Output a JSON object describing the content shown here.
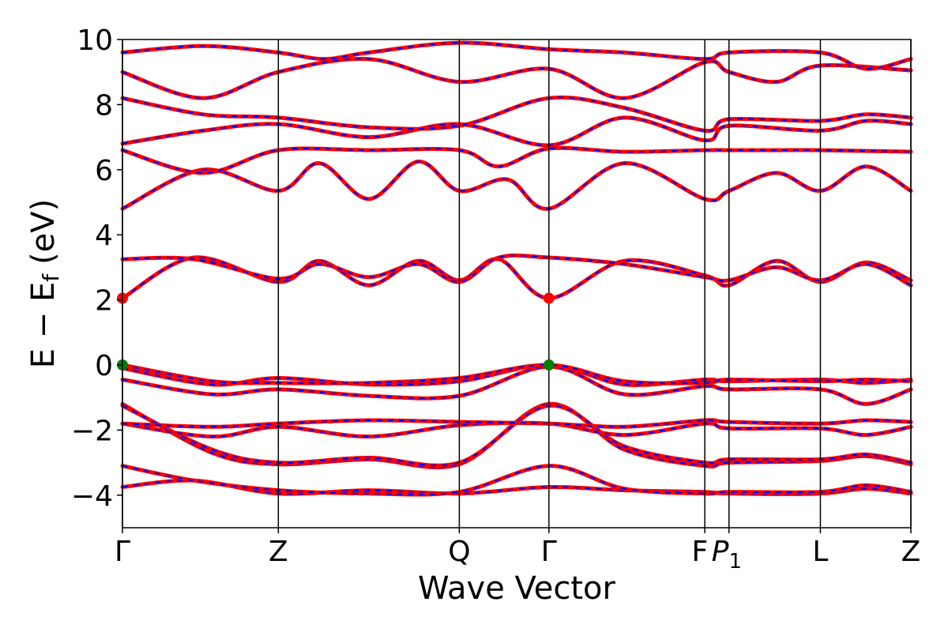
{
  "chart_data": {
    "type": "line",
    "xlabel": "Wave Vector",
    "ylabel": "E − E",
    "ylabel_sub": "f",
    "ylabel_unit": "(eV)",
    "ylim": [
      -5,
      10
    ],
    "y_ticks": [
      -4,
      -2,
      0,
      2,
      4,
      6,
      8,
      10
    ],
    "y_tick_labels": [
      "−4",
      "−2",
      "0",
      "2",
      "4",
      "6",
      "8",
      "10"
    ],
    "xlim": [
      0,
      8.8
    ],
    "k_points": [
      {
        "label": "Γ",
        "sub": "",
        "x": 0.0
      },
      {
        "label": "Z",
        "sub": "",
        "x": 1.74
      },
      {
        "label": "Q",
        "sub": "",
        "x": 3.76
      },
      {
        "label": "Γ",
        "sub": "",
        "x": 4.76
      },
      {
        "label": "F",
        "sub": "",
        "x": 6.5
      },
      {
        "label": "P",
        "sub": "1",
        "x": 6.77
      },
      {
        "label": "L",
        "sub": "",
        "x": 7.79
      },
      {
        "label": "Z",
        "sub": "",
        "x": 8.8
      }
    ],
    "grid": false,
    "series": [
      {
        "color": "#ff0000",
        "style": "solid"
      },
      {
        "color": "#0000ff",
        "style": "dashed"
      }
    ],
    "bands": [
      [
        [
          0,
          -3.75
        ],
        [
          0.8,
          -3.55
        ],
        [
          1.74,
          -3.95
        ],
        [
          2.75,
          -3.85
        ],
        [
          3.76,
          -3.95
        ],
        [
          4.76,
          -3.75
        ],
        [
          5.6,
          -3.85
        ],
        [
          6.5,
          -3.9
        ],
        [
          6.77,
          -3.95
        ],
        [
          7.79,
          -3.95
        ],
        [
          8.3,
          -3.8
        ],
        [
          8.8,
          -3.95
        ]
      ],
      [
        [
          0,
          -3.1
        ],
        [
          0.8,
          -3.55
        ],
        [
          1.74,
          -3.85
        ],
        [
          2.75,
          -3.95
        ],
        [
          3.76,
          -3.9
        ],
        [
          4.76,
          -3.1
        ],
        [
          5.6,
          -3.8
        ],
        [
          6.5,
          -3.95
        ],
        [
          6.77,
          -3.9
        ],
        [
          7.79,
          -3.9
        ],
        [
          8.3,
          -3.7
        ],
        [
          8.8,
          -3.9
        ]
      ],
      [
        [
          0,
          -1.2
        ],
        [
          1.0,
          -2.7
        ],
        [
          1.74,
          -3.05
        ],
        [
          2.75,
          -2.9
        ],
        [
          3.76,
          -3.05
        ],
        [
          4.76,
          -1.2
        ],
        [
          5.6,
          -2.6
        ],
        [
          6.5,
          -3.1
        ],
        [
          6.77,
          -3.0
        ],
        [
          7.79,
          -2.95
        ],
        [
          8.3,
          -2.8
        ],
        [
          8.8,
          -3.05
        ]
      ],
      [
        [
          0,
          -1.25
        ],
        [
          1.0,
          -2.6
        ],
        [
          1.74,
          -3.0
        ],
        [
          2.75,
          -2.85
        ],
        [
          3.76,
          -3.0
        ],
        [
          4.76,
          -1.25
        ],
        [
          5.6,
          -2.5
        ],
        [
          6.5,
          -3.0
        ],
        [
          6.77,
          -2.9
        ],
        [
          7.79,
          -2.9
        ],
        [
          8.3,
          -2.75
        ],
        [
          8.8,
          -3.0
        ]
      ],
      [
        [
          0,
          -1.8
        ],
        [
          1.0,
          -2.2
        ],
        [
          1.74,
          -1.9
        ],
        [
          2.75,
          -2.2
        ],
        [
          3.76,
          -1.85
        ],
        [
          4.76,
          -1.8
        ],
        [
          5.6,
          -2.15
        ],
        [
          6.5,
          -1.8
        ],
        [
          6.77,
          -1.95
        ],
        [
          7.79,
          -1.95
        ],
        [
          8.3,
          -2.15
        ],
        [
          8.8,
          -1.9
        ]
      ],
      [
        [
          0,
          -1.8
        ],
        [
          1.0,
          -1.9
        ],
        [
          1.74,
          -1.8
        ],
        [
          2.75,
          -1.7
        ],
        [
          3.76,
          -1.75
        ],
        [
          4.76,
          -1.8
        ],
        [
          5.6,
          -1.9
        ],
        [
          6.5,
          -1.7
        ],
        [
          6.77,
          -1.75
        ],
        [
          7.79,
          -1.8
        ],
        [
          8.3,
          -1.7
        ],
        [
          8.8,
          -1.75
        ]
      ],
      [
        [
          0,
          -0.45
        ],
        [
          1.0,
          -0.9
        ],
        [
          1.74,
          -0.75
        ],
        [
          2.75,
          -0.95
        ],
        [
          3.76,
          -0.95
        ],
        [
          4.76,
          -0.05
        ],
        [
          5.6,
          -0.9
        ],
        [
          6.5,
          -0.65
        ],
        [
          6.77,
          -0.75
        ],
        [
          7.79,
          -0.75
        ],
        [
          8.3,
          -1.2
        ],
        [
          8.8,
          -0.75
        ]
      ],
      [
        [
          0,
          -0.1
        ],
        [
          1.0,
          -0.6
        ],
        [
          1.74,
          -0.4
        ],
        [
          2.75,
          -0.6
        ],
        [
          3.76,
          -0.5
        ],
        [
          4.76,
          0.0
        ],
        [
          5.6,
          -0.6
        ],
        [
          6.5,
          -0.45
        ],
        [
          6.77,
          -0.5
        ],
        [
          7.79,
          -0.45
        ],
        [
          8.3,
          -0.55
        ],
        [
          8.8,
          -0.45
        ]
      ],
      [
        [
          0,
          0.0
        ],
        [
          1.0,
          -0.5
        ],
        [
          1.74,
          -0.55
        ],
        [
          2.75,
          -0.55
        ],
        [
          3.76,
          -0.4
        ],
        [
          4.76,
          0.0
        ],
        [
          5.6,
          -0.5
        ],
        [
          6.5,
          -0.55
        ],
        [
          6.77,
          -0.45
        ],
        [
          7.79,
          -0.5
        ],
        [
          8.3,
          -0.45
        ],
        [
          8.8,
          -0.5
        ]
      ],
      [
        [
          0,
          2.05
        ],
        [
          0.8,
          3.3
        ],
        [
          1.74,
          2.55
        ],
        [
          2.2,
          3.2
        ],
        [
          2.75,
          2.45
        ],
        [
          3.3,
          3.2
        ],
        [
          3.76,
          2.6
        ],
        [
          4.2,
          3.25
        ],
        [
          4.76,
          2.05
        ],
        [
          5.6,
          3.2
        ],
        [
          6.5,
          2.75
        ],
        [
          6.77,
          2.45
        ],
        [
          7.3,
          3.2
        ],
        [
          7.79,
          2.55
        ],
        [
          8.3,
          3.15
        ],
        [
          8.8,
          2.6
        ]
      ],
      [
        [
          0,
          3.25
        ],
        [
          0.8,
          3.25
        ],
        [
          1.74,
          2.65
        ],
        [
          2.2,
          3.1
        ],
        [
          2.75,
          2.7
        ],
        [
          3.3,
          3.1
        ],
        [
          3.76,
          2.55
        ],
        [
          4.2,
          3.3
        ],
        [
          4.76,
          3.3
        ],
        [
          5.6,
          3.1
        ],
        [
          6.5,
          2.7
        ],
        [
          6.77,
          2.6
        ],
        [
          7.3,
          3.0
        ],
        [
          7.79,
          2.6
        ],
        [
          8.3,
          3.1
        ],
        [
          8.8,
          2.45
        ]
      ],
      [
        [
          0,
          4.8
        ],
        [
          0.9,
          6.0
        ],
        [
          1.74,
          5.35
        ],
        [
          2.2,
          6.2
        ],
        [
          2.75,
          5.1
        ],
        [
          3.3,
          6.25
        ],
        [
          3.76,
          5.35
        ],
        [
          4.3,
          5.7
        ],
        [
          4.76,
          4.8
        ],
        [
          5.6,
          6.2
        ],
        [
          6.5,
          5.1
        ],
        [
          6.77,
          5.35
        ],
        [
          7.3,
          5.9
        ],
        [
          7.79,
          5.35
        ],
        [
          8.3,
          6.1
        ],
        [
          8.8,
          5.35
        ]
      ],
      [
        [
          0,
          6.6
        ],
        [
          0.9,
          5.9
        ],
        [
          1.74,
          6.6
        ],
        [
          2.75,
          6.6
        ],
        [
          3.76,
          6.6
        ],
        [
          4.2,
          6.1
        ],
        [
          4.76,
          6.65
        ],
        [
          5.6,
          6.55
        ],
        [
          6.5,
          6.6
        ],
        [
          6.77,
          6.6
        ],
        [
          7.3,
          6.6
        ],
        [
          7.79,
          6.6
        ],
        [
          8.8,
          6.55
        ]
      ],
      [
        [
          0,
          6.8
        ],
        [
          0.9,
          7.2
        ],
        [
          1.74,
          7.4
        ],
        [
          2.75,
          7.0
        ],
        [
          3.76,
          7.4
        ],
        [
          4.76,
          6.75
        ],
        [
          5.6,
          7.6
        ],
        [
          6.5,
          6.9
        ],
        [
          6.77,
          7.35
        ],
        [
          7.79,
          7.2
        ],
        [
          8.3,
          7.5
        ],
        [
          8.8,
          7.4
        ]
      ],
      [
        [
          0,
          8.2
        ],
        [
          0.9,
          7.7
        ],
        [
          1.74,
          7.6
        ],
        [
          2.75,
          7.3
        ],
        [
          3.76,
          7.35
        ],
        [
          4.76,
          8.2
        ],
        [
          5.6,
          7.9
        ],
        [
          6.5,
          7.2
        ],
        [
          6.77,
          7.55
        ],
        [
          7.79,
          7.5
        ],
        [
          8.3,
          7.7
        ],
        [
          8.8,
          7.6
        ]
      ],
      [
        [
          0,
          9.0
        ],
        [
          0.9,
          8.2
        ],
        [
          1.74,
          9.0
        ],
        [
          2.75,
          9.4
        ],
        [
          3.76,
          8.7
        ],
        [
          4.76,
          9.1
        ],
        [
          5.6,
          8.2
        ],
        [
          6.5,
          9.3
        ],
        [
          6.77,
          9.0
        ],
        [
          7.3,
          8.7
        ],
        [
          7.79,
          9.2
        ],
        [
          8.8,
          9.05
        ]
      ],
      [
        [
          0,
          9.6
        ],
        [
          0.9,
          9.8
        ],
        [
          1.74,
          9.6
        ],
        [
          2.25,
          9.4
        ],
        [
          2.75,
          9.6
        ],
        [
          3.76,
          9.9
        ],
        [
          4.76,
          9.7
        ],
        [
          5.6,
          9.6
        ],
        [
          6.5,
          9.4
        ],
        [
          6.77,
          9.6
        ],
        [
          7.79,
          9.6
        ],
        [
          8.3,
          9.1
        ],
        [
          8.8,
          9.4
        ]
      ]
    ],
    "vbm_points": [
      [
        0,
        0.0
      ],
      [
        4.76,
        0.0
      ]
    ],
    "cbm_points": [
      [
        0,
        2.05
      ],
      [
        4.76,
        2.05
      ]
    ],
    "vbm_color": "#008000",
    "cbm_color": "#ff0000"
  }
}
